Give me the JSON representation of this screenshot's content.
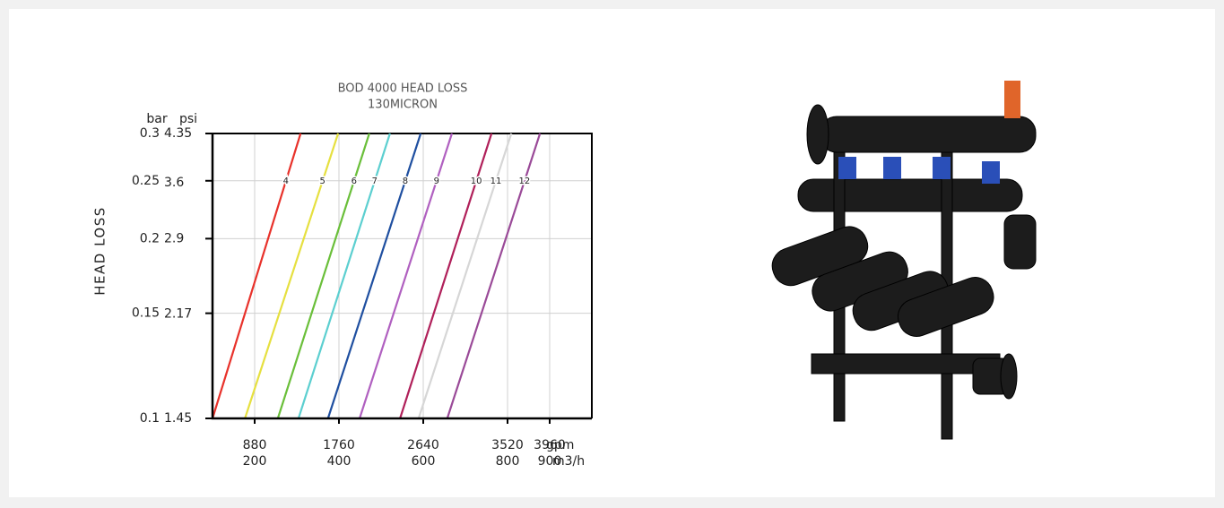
{
  "chart_data": {
    "type": "line",
    "title": "BOD 4000 HEAD LOSS",
    "subtitle": "130MICRON",
    "ylabel": "HEAD LOSS",
    "y_unit": "bar",
    "y2_unit": "psi",
    "x_unit": "m3/h",
    "x2_unit": "gpm",
    "xlim": [
      100,
      1000
    ],
    "xticks": [
      200,
      400,
      600,
      800,
      900
    ],
    "x2lim": [
      440,
      4400
    ],
    "x2ticks": [
      880,
      1760,
      2640,
      3520,
      3960
    ],
    "ylim": [
      0.1,
      0.3
    ],
    "yticks": [
      0.1,
      0.15,
      0.2,
      0.25,
      0.3
    ],
    "ylog": true,
    "y2lim": [
      1.45,
      4.35
    ],
    "y2ticks": [
      1.45,
      2.17,
      2.9,
      3.6,
      4.35
    ],
    "y2log": true,
    "grid": true,
    "series": [
      {
        "name": "4",
        "color": "#e8322b",
        "x": [
          100,
          309
        ],
        "values": [
          0.1,
          0.3
        ]
      },
      {
        "name": "5",
        "color": "#e6e040",
        "x": [
          177,
          398
        ],
        "values": [
          0.1,
          0.3
        ]
      },
      {
        "name": "6",
        "color": "#6abf3a",
        "x": [
          255,
          472
        ],
        "values": [
          0.1,
          0.3
        ]
      },
      {
        "name": "7",
        "color": "#5ccfd0",
        "x": [
          304,
          521
        ],
        "values": [
          0.1,
          0.3
        ]
      },
      {
        "name": "8",
        "color": "#1f4fa0",
        "x": [
          374,
          594
        ],
        "values": [
          0.1,
          0.3
        ]
      },
      {
        "name": "9",
        "color": "#b060c0",
        "x": [
          449,
          668
        ],
        "values": [
          0.1,
          0.3
        ]
      },
      {
        "name": "10",
        "color": "#b0205a",
        "x": [
          545,
          762
        ],
        "values": [
          0.1,
          0.3
        ]
      },
      {
        "name": "11",
        "color": "#d6d6d6",
        "x": [
          589,
          809
        ],
        "values": [
          0.1,
          0.3
        ]
      },
      {
        "name": "12",
        "color": "#9a4a98",
        "x": [
          657,
          877
        ],
        "values": [
          0.1,
          0.3
        ]
      }
    ]
  }
}
